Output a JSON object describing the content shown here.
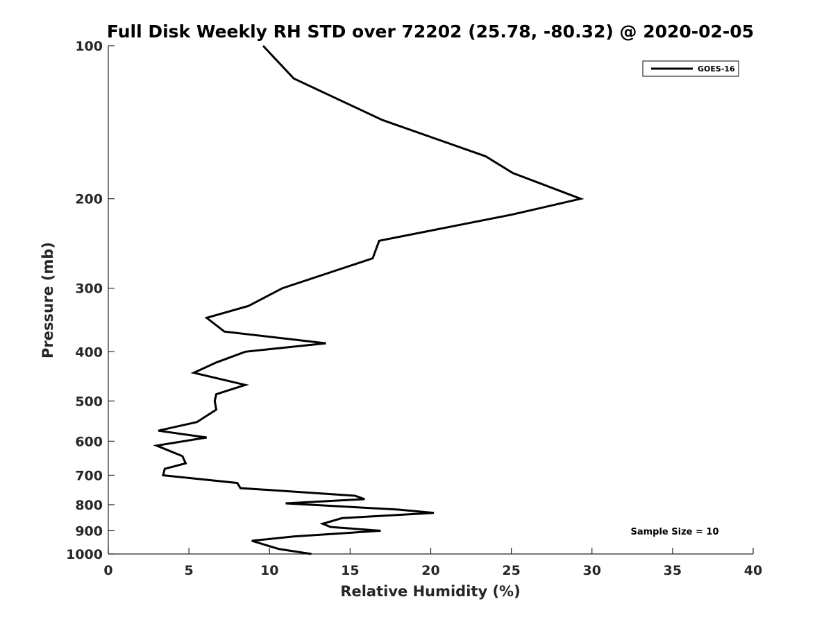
{
  "chart_data": {
    "type": "line",
    "title": "Full Disk Weekly RH STD over 72202 (25.78, -80.32) @ 2020-02-05",
    "xlabel": "Relative Humidity (%)",
    "ylabel": "Pressure (mb)",
    "xlim": [
      0,
      40
    ],
    "ylim": [
      100,
      1000
    ],
    "yscale": "log",
    "y_reversed": true,
    "grid": false,
    "legend_position": "top-right",
    "x_ticks": [
      0,
      5,
      10,
      15,
      20,
      25,
      30,
      35,
      40
    ],
    "x_tick_labels": [
      "0",
      "5",
      "10",
      "15",
      "20",
      "25",
      "30",
      "35",
      "40"
    ],
    "y_ticks": [
      100,
      200,
      300,
      400,
      500,
      600,
      700,
      800,
      900,
      1000
    ],
    "y_tick_labels": [
      "100",
      "200",
      "300",
      "400",
      "500",
      "600",
      "700",
      "800",
      "900",
      "1000"
    ],
    "annotation": "Sample Size = 10",
    "series": [
      {
        "name": "GOES-16",
        "color": "#000000",
        "points": [
          [
            9.6,
            100
          ],
          [
            11.5,
            116
          ],
          [
            17.0,
            140
          ],
          [
            23.4,
            165
          ],
          [
            25.1,
            178
          ],
          [
            29.3,
            200
          ],
          [
            25.0,
            215
          ],
          [
            16.8,
            242
          ],
          [
            16.4,
            262
          ],
          [
            10.8,
            300
          ],
          [
            8.7,
            325
          ],
          [
            6.1,
            343
          ],
          [
            7.2,
            365
          ],
          [
            13.5,
            385
          ],
          [
            8.5,
            400
          ],
          [
            6.7,
            420
          ],
          [
            5.3,
            440
          ],
          [
            8.5,
            465
          ],
          [
            6.7,
            485
          ],
          [
            6.6,
            500
          ],
          [
            6.7,
            520
          ],
          [
            5.5,
            550
          ],
          [
            3.1,
            572
          ],
          [
            6.1,
            590
          ],
          [
            3.0,
            612
          ],
          [
            4.6,
            642
          ],
          [
            4.8,
            663
          ],
          [
            3.5,
            680
          ],
          [
            3.4,
            700
          ],
          [
            8.0,
            725
          ],
          [
            8.2,
            742
          ],
          [
            15.3,
            768
          ],
          [
            15.9,
            780
          ],
          [
            11.0,
            795
          ],
          [
            18.0,
            818
          ],
          [
            20.2,
            830
          ],
          [
            14.5,
            850
          ],
          [
            13.3,
            872
          ],
          [
            13.8,
            885
          ],
          [
            16.9,
            900
          ],
          [
            11.5,
            924
          ],
          [
            8.9,
            942
          ],
          [
            10.6,
            978
          ],
          [
            12.6,
            1000
          ]
        ]
      }
    ]
  }
}
